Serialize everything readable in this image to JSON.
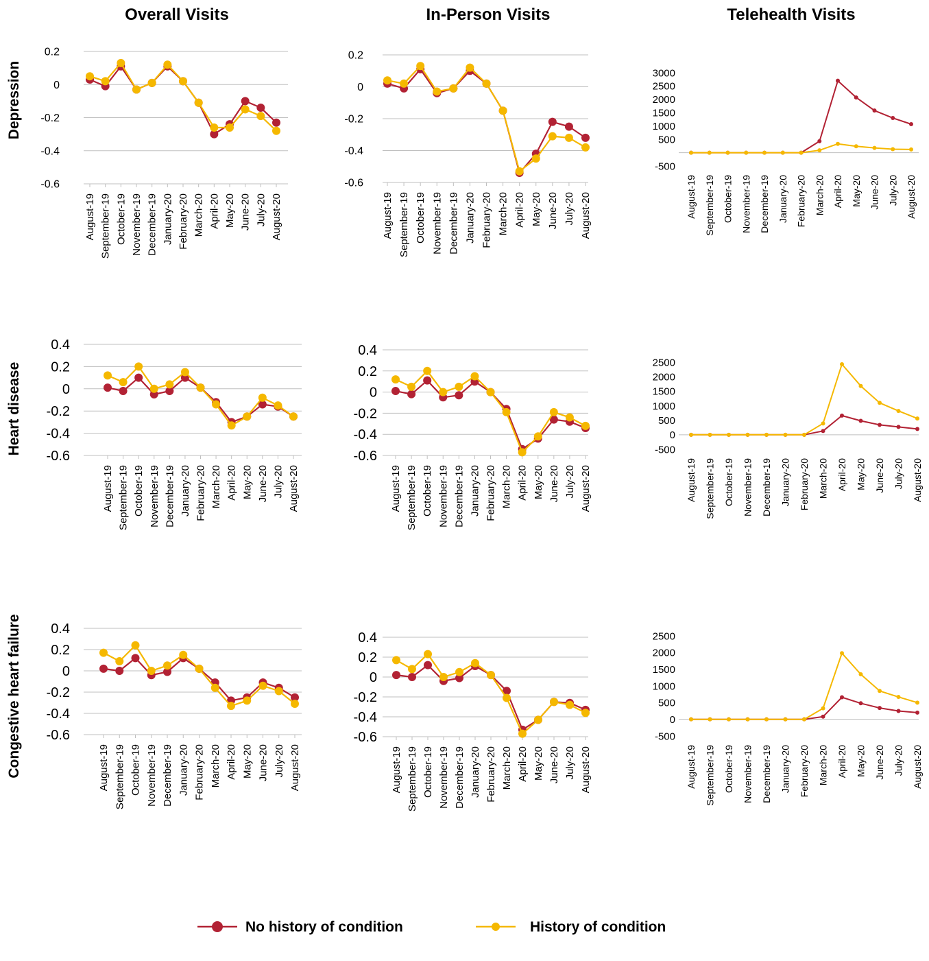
{
  "colors": {
    "no_history": "#B22234",
    "history": "#F5B800",
    "grid": "#BFBFBF",
    "text": "#000000"
  },
  "column_titles": [
    "Overall Visits",
    "In-Person Visits",
    "Telehealth Visits"
  ],
  "row_titles": [
    "Depression",
    "Heart disease",
    "Congestive heart failure"
  ],
  "legend": {
    "no_history": "No history of condition",
    "history": "History of condition"
  },
  "chart_data": [
    {
      "type": "line",
      "row": "Depression",
      "column": "Overall Visits",
      "categories": [
        "August-19",
        "September-19",
        "October-19",
        "November-19",
        "December-19",
        "January-20",
        "February-20",
        "March-20",
        "April-20",
        "May-20",
        "June-20",
        "July-20",
        "August-20"
      ],
      "ylim": [
        -0.6,
        0.2
      ],
      "yticks": [
        "0.2",
        "0",
        "-0.2",
        "-0.4",
        "-0.6"
      ],
      "grid": true,
      "series": [
        {
          "name": "No history of condition",
          "values": [
            0.03,
            -0.01,
            0.11,
            -0.03,
            0.01,
            0.11,
            0.02,
            -0.11,
            -0.3,
            -0.24,
            -0.1,
            -0.14,
            -0.23
          ]
        },
        {
          "name": "History of condition",
          "values": [
            0.05,
            0.02,
            0.13,
            -0.03,
            0.01,
            0.12,
            0.02,
            -0.11,
            -0.26,
            -0.26,
            -0.15,
            -0.19,
            -0.28
          ]
        }
      ]
    },
    {
      "type": "line",
      "row": "Depression",
      "column": "In-Person Visits",
      "categories": [
        "August-19",
        "September-19",
        "October-19",
        "November-19",
        "December-19",
        "January-20",
        "February-20",
        "March-20",
        "April-20",
        "May-20",
        "June-20",
        "July-20",
        "August-20"
      ],
      "ylim": [
        -0.6,
        0.2
      ],
      "yticks": [
        "0.2",
        "0",
        "-0.2",
        "-0.4",
        "-0.6"
      ],
      "grid": true,
      "series": [
        {
          "name": "No history of condition",
          "values": [
            0.02,
            -0.01,
            0.11,
            -0.04,
            -0.01,
            0.1,
            0.02,
            -0.15,
            -0.54,
            -0.42,
            -0.22,
            -0.25,
            -0.32
          ]
        },
        {
          "name": "History of condition",
          "values": [
            0.04,
            0.02,
            0.13,
            -0.03,
            -0.01,
            0.12,
            0.02,
            -0.15,
            -0.53,
            -0.45,
            -0.31,
            -0.32,
            -0.38
          ]
        }
      ]
    },
    {
      "type": "line",
      "row": "Depression",
      "column": "Telehealth Visits",
      "categories": [
        "August-19",
        "September-19",
        "October-19",
        "November-19",
        "December-19",
        "January-20",
        "February-20",
        "March-20",
        "April-20",
        "May-20",
        "June-20",
        "July-20",
        "August-20"
      ],
      "ylim": [
        -500,
        3000
      ],
      "yticks": [
        "3000",
        "2500",
        "2000",
        "1500",
        "1000",
        "500",
        "-500"
      ],
      "grid": false,
      "series": [
        {
          "name": "No history of condition",
          "values": [
            0,
            0,
            0,
            0,
            0,
            0,
            0,
            430,
            2700,
            2070,
            1580,
            1300,
            1070
          ]
        },
        {
          "name": "History of condition",
          "values": [
            0,
            0,
            0,
            0,
            0,
            0,
            0,
            90,
            330,
            240,
            180,
            130,
            120
          ]
        }
      ]
    },
    {
      "type": "line",
      "row": "Heart disease",
      "column": "Overall Visits",
      "categories": [
        "August-19",
        "September-19",
        "October-19",
        "November-19",
        "December-19",
        "January-20",
        "February-20",
        "March-20",
        "April-20",
        "May-20",
        "June-20",
        "July-20",
        "August-20"
      ],
      "ylim": [
        -0.6,
        0.4
      ],
      "yticks": [
        "0.4",
        "0.2",
        "0",
        "-0.2",
        "-0.4",
        "-0.6"
      ],
      "grid": true,
      "series": [
        {
          "name": "No history of condition",
          "values": [
            0.01,
            -0.02,
            0.1,
            -0.05,
            -0.02,
            0.1,
            0.01,
            -0.12,
            -0.3,
            -0.25,
            -0.14,
            -0.16,
            -0.25
          ]
        },
        {
          "name": "History of condition",
          "values": [
            0.12,
            0.06,
            0.2,
            0.0,
            0.04,
            0.15,
            0.01,
            -0.14,
            -0.33,
            -0.25,
            -0.08,
            -0.15,
            -0.25
          ]
        }
      ]
    },
    {
      "type": "line",
      "row": "Heart disease",
      "column": "In-Person Visits",
      "categories": [
        "August-19",
        "September-19",
        "October-19",
        "November-19",
        "December-19",
        "January-20",
        "February-20",
        "March-20",
        "April-20",
        "May-20",
        "June-20",
        "July-20",
        "August-20"
      ],
      "ylim": [
        -0.6,
        0.4
      ],
      "yticks": [
        "0.4",
        "0.2",
        "0",
        "-0.2",
        "-0.4",
        "-0.6"
      ],
      "grid": true,
      "series": [
        {
          "name": "No history of condition",
          "values": [
            0.01,
            -0.02,
            0.11,
            -0.05,
            -0.03,
            0.1,
            0.0,
            -0.16,
            -0.54,
            -0.44,
            -0.26,
            -0.28,
            -0.34
          ]
        },
        {
          "name": "History of condition",
          "values": [
            0.12,
            0.05,
            0.2,
            0.0,
            0.05,
            0.15,
            0.0,
            -0.19,
            -0.57,
            -0.42,
            -0.19,
            -0.24,
            -0.32
          ]
        }
      ]
    },
    {
      "type": "line",
      "row": "Heart disease",
      "column": "Telehealth Visits",
      "categories": [
        "August-19",
        "September-19",
        "October-19",
        "November-19",
        "December-19",
        "January-20",
        "February-20",
        "March-20",
        "April-20",
        "May-20",
        "June-20",
        "July-20",
        "August-20"
      ],
      "ylim": [
        -500,
        2500
      ],
      "yticks": [
        "2500",
        "2000",
        "1500",
        "1000",
        "500",
        "0",
        "-500"
      ],
      "grid": false,
      "series": [
        {
          "name": "No history of condition",
          "values": [
            0,
            0,
            0,
            0,
            0,
            0,
            0,
            130,
            660,
            480,
            340,
            270,
            200
          ]
        },
        {
          "name": "History of condition",
          "values": [
            0,
            0,
            0,
            0,
            0,
            0,
            0,
            390,
            2430,
            1680,
            1100,
            820,
            560
          ]
        }
      ]
    },
    {
      "type": "line",
      "row": "Congestive heart failure",
      "column": "Overall Visits",
      "categories": [
        "August-19",
        "September-19",
        "October-19",
        "November-19",
        "December-19",
        "January-20",
        "February-20",
        "March-20",
        "April-20",
        "May-20",
        "June-20",
        "July-20",
        "August-20"
      ],
      "ylim": [
        -0.6,
        0.4
      ],
      "yticks": [
        "0.4",
        "0.2",
        "0",
        "-0.2",
        "-0.4",
        "-0.6"
      ],
      "grid": true,
      "series": [
        {
          "name": "No history of condition",
          "values": [
            0.02,
            0.0,
            0.12,
            -0.04,
            -0.01,
            0.12,
            0.02,
            -0.11,
            -0.28,
            -0.25,
            -0.11,
            -0.16,
            -0.25
          ]
        },
        {
          "name": "History of condition",
          "values": [
            0.17,
            0.09,
            0.24,
            0.0,
            0.05,
            0.15,
            0.02,
            -0.16,
            -0.33,
            -0.28,
            -0.14,
            -0.19,
            -0.31
          ]
        }
      ]
    },
    {
      "type": "line",
      "row": "Congestive heart failure",
      "column": "In-Person Visits",
      "categories": [
        "August-19",
        "September-19",
        "October-19",
        "November-19",
        "December-19",
        "January-20",
        "February-20",
        "March-20",
        "April-20",
        "May-20",
        "June-20",
        "July-20",
        "August-20"
      ],
      "ylim": [
        -0.6,
        0.4
      ],
      "yticks": [
        "0.4",
        "0.2",
        "0",
        "-0.2",
        "-0.4",
        "-0.6"
      ],
      "grid": true,
      "series": [
        {
          "name": "No history of condition",
          "values": [
            0.02,
            0.0,
            0.12,
            -0.04,
            -0.01,
            0.11,
            0.02,
            -0.14,
            -0.53,
            -0.43,
            -0.25,
            -0.26,
            -0.33
          ]
        },
        {
          "name": "History of condition",
          "values": [
            0.17,
            0.08,
            0.23,
            0.0,
            0.05,
            0.14,
            0.02,
            -0.21,
            -0.57,
            -0.43,
            -0.25,
            -0.28,
            -0.36
          ]
        }
      ]
    },
    {
      "type": "line",
      "row": "Congestive heart failure",
      "column": "Telehealth Visits",
      "categories": [
        "August-19",
        "September-19",
        "October-19",
        "November-19",
        "December-19",
        "January-20",
        "February-20",
        "March-20",
        "April-20",
        "May-20",
        "June-20",
        "July-20",
        "August-20"
      ],
      "ylim": [
        -500,
        2500
      ],
      "yticks": [
        "2500",
        "2000",
        "1500",
        "1000",
        "500",
        "0",
        "-500"
      ],
      "grid": false,
      "series": [
        {
          "name": "No history of condition",
          "values": [
            0,
            0,
            0,
            0,
            0,
            0,
            0,
            80,
            660,
            480,
            340,
            250,
            200
          ]
        },
        {
          "name": "History of condition",
          "values": [
            0,
            0,
            0,
            0,
            0,
            0,
            0,
            330,
            1980,
            1350,
            850,
            670,
            500
          ]
        }
      ]
    }
  ]
}
